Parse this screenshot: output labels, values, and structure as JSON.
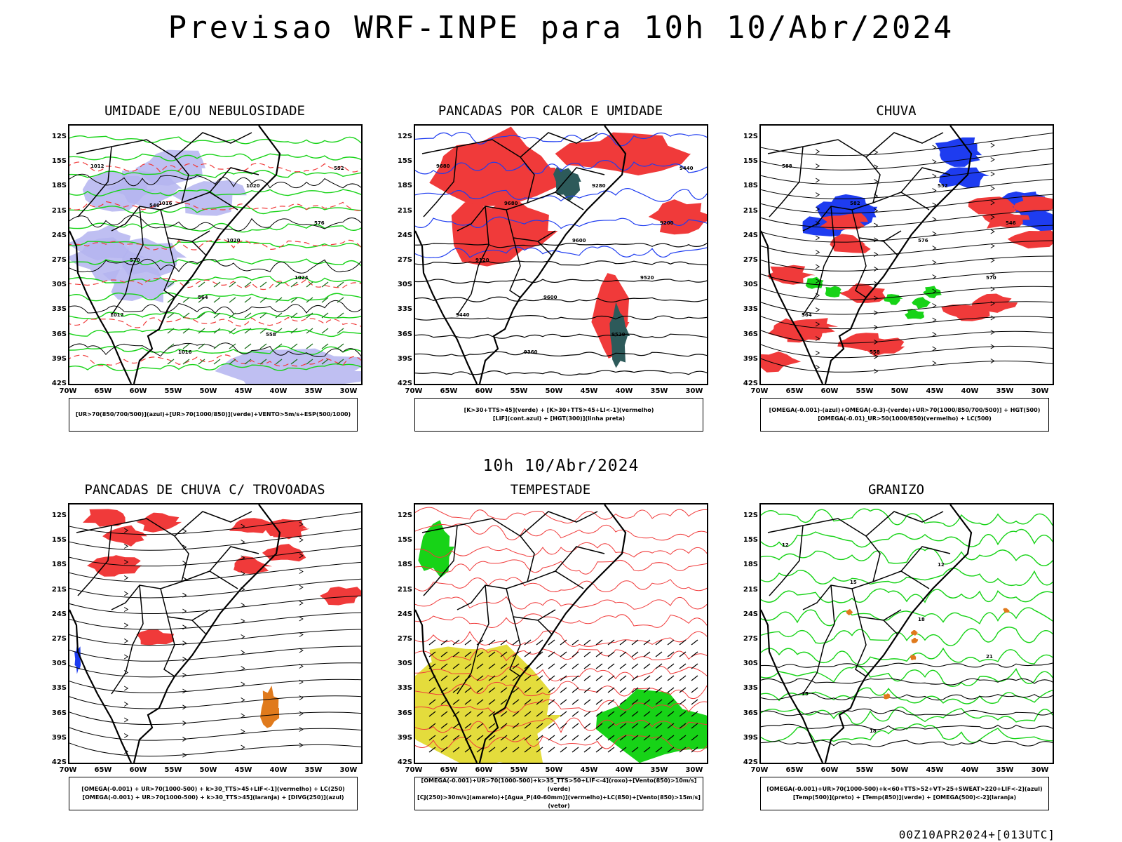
{
  "header": {
    "title": "Previsao WRF-INPE  para 10h 10/Abr/2024",
    "mid_date": "10h 10/Abr/2024",
    "run_info": "00Z10APR2024+[013UTC]"
  },
  "axes": {
    "lat_labels": [
      "12S",
      "15S",
      "18S",
      "21S",
      "24S",
      "27S",
      "30S",
      "33S",
      "36S",
      "39S",
      "42S"
    ],
    "lon_labels": [
      "70W",
      "65W",
      "60W",
      "55W",
      "50W",
      "45W",
      "40W",
      "35W",
      "30W"
    ]
  },
  "colors": {
    "green": "#17d317",
    "red": "#f03a3a",
    "blue": "#1e3cf0",
    "lavender": "#b4b4f0",
    "dark_teal": "#2d5a5a",
    "yellow": "#e4dc3c",
    "orange": "#e07a1c"
  },
  "panels": [
    {
      "title": "UMIDADE E/OU NEBULOSIDADE",
      "legend": [
        "[UR>70(850/700/500)](azul)+[UR>70(1000/850)](verde)+VENTO>5m/s+ESP(500/1000)"
      ],
      "contour_labels": [
        "1012",
        "1016",
        "1020",
        "1024",
        "1012",
        "1016",
        "1020",
        "576",
        "570",
        "564",
        "558",
        "552",
        "546"
      ]
    },
    {
      "title": "PANCADAS POR CALOR E UMIDADE",
      "legend": [
        "[K>30+TTS>45](verde) + [K>30+TTS>45+LI<-1](vermelho)",
        "[LIF](cont.azul) + [HGT(300)](linha preta)"
      ],
      "contour_labels": [
        "9680",
        "9680",
        "9600",
        "9520",
        "9440",
        "9360",
        "9280",
        "9200",
        "9120",
        "9600",
        "9520",
        "9440"
      ]
    },
    {
      "title": "CHUVA",
      "legend": [
        "[OMEGA(-0.001)-(azul)+OMEGA(-0.3)-(verde)+UR>70(1000/850/700/500)] + HGT(500)",
        "[OMEGA(-0.01)_UR>50(1000/850)(vermelho) + LC(500)"
      ],
      "contour_labels": [
        "588",
        "582",
        "576",
        "570",
        "564",
        "558",
        "552",
        "546"
      ]
    },
    {
      "title": "PANCADAS DE CHUVA C/ TROVOADAS",
      "legend": [
        "[OMEGA(-0.001) + UR>70(1000-500) + k>30_TTS>45+LIF<-1](vermelho) + LC(250)",
        "[OMEGA(-0.001) + UR>70(1000-500) + k>30_TTS>45](laranja) + [DIVG(250)](azul)"
      ],
      "contour_labels": []
    },
    {
      "title": "TEMPESTADE",
      "legend": [
        "[OMEGA(-0.001)+UR>70(1000-500)+k>35_TTS>50+LIF<-4](roxo)+[Vento(850)>10m/s](verde)",
        "[CJ(250)>30m/s](amarelo)+[Agua_P(40-60mm)](vermelho)+LC(850)+[Vento(850)>15m/s](vetor)"
      ],
      "contour_labels": []
    },
    {
      "title": "GRANIZO",
      "legend": [
        "[OMEGA(-0.001)+UR>70(1000-500)+k<60+TTS>52+VT>25+SWEAT>220+LIF<-2](azul)",
        "[Temp(500)](preto) + [Temp(850)](verde) + [OMEGA(500)<-2](laranja)"
      ],
      "contour_labels": [
        "12",
        "15",
        "18",
        "21",
        "15",
        "18",
        "12"
      ]
    }
  ]
}
